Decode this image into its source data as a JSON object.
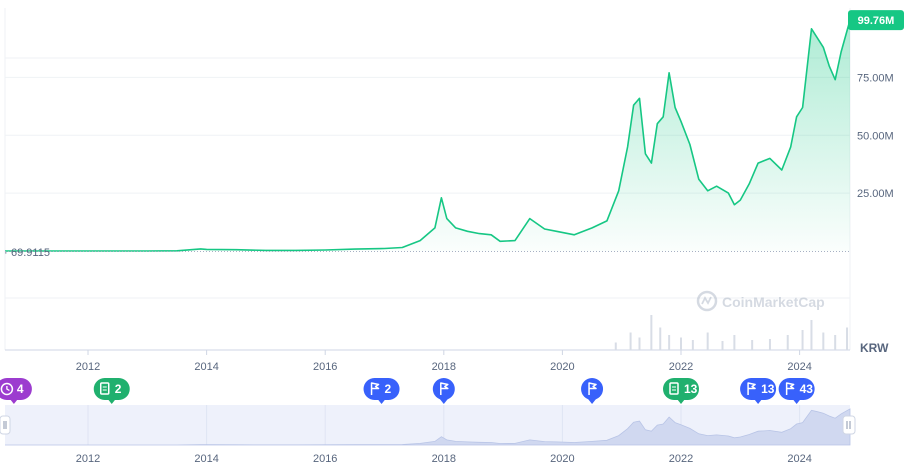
{
  "chart_data": {
    "type": "area",
    "currency": "KRW",
    "start_value_label": "69.9115",
    "current_value_label": "99.76M",
    "watermark": "CoinMarketCap",
    "y_ticks": [
      {
        "value": 25000000,
        "label": "25.00M"
      },
      {
        "value": 50000000,
        "label": "50.00M"
      },
      {
        "value": 75000000,
        "label": "75.00M"
      }
    ],
    "x_ticks": [
      {
        "year": 2012,
        "label": "2012"
      },
      {
        "year": 2014,
        "label": "2014"
      },
      {
        "year": 2016,
        "label": "2016"
      },
      {
        "year": 2018,
        "label": "2018"
      },
      {
        "year": 2020,
        "label": "2020"
      },
      {
        "year": 2022,
        "label": "2022"
      },
      {
        "year": 2024,
        "label": "2024"
      }
    ],
    "x_range": [
      2010.6,
      2024.85
    ],
    "y_range": [
      0,
      105000000
    ],
    "grid": true,
    "series": [
      {
        "color": "#16c784",
        "points": [
          [
            2010.6,
            70
          ],
          [
            2011.0,
            5000
          ],
          [
            2011.5,
            15000
          ],
          [
            2012.0,
            6000
          ],
          [
            2012.5,
            8000
          ],
          [
            2013.0,
            15000
          ],
          [
            2013.5,
            90000
          ],
          [
            2013.9,
            900000
          ],
          [
            2014.0,
            700000
          ],
          [
            2014.5,
            550000
          ],
          [
            2015.0,
            250000
          ],
          [
            2015.5,
            280000
          ],
          [
            2016.0,
            450000
          ],
          [
            2016.5,
            800000
          ],
          [
            2017.0,
            1100000
          ],
          [
            2017.3,
            1500000
          ],
          [
            2017.6,
            4500000
          ],
          [
            2017.85,
            10000000
          ],
          [
            2017.96,
            23000000
          ],
          [
            2018.05,
            14000000
          ],
          [
            2018.2,
            10000000
          ],
          [
            2018.4,
            8500000
          ],
          [
            2018.6,
            7500000
          ],
          [
            2018.8,
            7000000
          ],
          [
            2018.95,
            4200000
          ],
          [
            2019.2,
            4500000
          ],
          [
            2019.45,
            14000000
          ],
          [
            2019.7,
            9500000
          ],
          [
            2019.9,
            8500000
          ],
          [
            2020.2,
            7000000
          ],
          [
            2020.5,
            10000000
          ],
          [
            2020.75,
            13000000
          ],
          [
            2020.95,
            26000000
          ],
          [
            2021.1,
            45000000
          ],
          [
            2021.2,
            63000000
          ],
          [
            2021.3,
            66000000
          ],
          [
            2021.4,
            42000000
          ],
          [
            2021.5,
            38000000
          ],
          [
            2021.6,
            55000000
          ],
          [
            2021.7,
            58000000
          ],
          [
            2021.8,
            77000000
          ],
          [
            2021.9,
            62000000
          ],
          [
            2022.0,
            56000000
          ],
          [
            2022.15,
            46000000
          ],
          [
            2022.3,
            31000000
          ],
          [
            2022.45,
            26000000
          ],
          [
            2022.6,
            28000000
          ],
          [
            2022.8,
            25000000
          ],
          [
            2022.9,
            20000000
          ],
          [
            2023.0,
            22000000
          ],
          [
            2023.15,
            29000000
          ],
          [
            2023.3,
            38000000
          ],
          [
            2023.5,
            40000000
          ],
          [
            2023.7,
            35000000
          ],
          [
            2023.85,
            45000000
          ],
          [
            2023.95,
            58000000
          ],
          [
            2024.05,
            62000000
          ],
          [
            2024.2,
            96000000
          ],
          [
            2024.3,
            92000000
          ],
          [
            2024.4,
            88000000
          ],
          [
            2024.5,
            80000000
          ],
          [
            2024.6,
            74000000
          ],
          [
            2024.7,
            86000000
          ],
          [
            2024.85,
            99760000
          ]
        ]
      }
    ],
    "volume": [
      {
        "x": 2020.9,
        "v": 0.15
      },
      {
        "x": 2021.15,
        "v": 0.35
      },
      {
        "x": 2021.3,
        "v": 0.25
      },
      {
        "x": 2021.5,
        "v": 0.7
      },
      {
        "x": 2021.65,
        "v": 0.45
      },
      {
        "x": 2021.8,
        "v": 0.3
      },
      {
        "x": 2022.0,
        "v": 0.25
      },
      {
        "x": 2022.2,
        "v": 0.2
      },
      {
        "x": 2022.45,
        "v": 0.35
      },
      {
        "x": 2022.7,
        "v": 0.18
      },
      {
        "x": 2022.9,
        "v": 0.3
      },
      {
        "x": 2023.2,
        "v": 0.2
      },
      {
        "x": 2023.5,
        "v": 0.22
      },
      {
        "x": 2023.8,
        "v": 0.3
      },
      {
        "x": 2024.05,
        "v": 0.4
      },
      {
        "x": 2024.2,
        "v": 0.6
      },
      {
        "x": 2024.4,
        "v": 0.35
      },
      {
        "x": 2024.6,
        "v": 0.3
      },
      {
        "x": 2024.8,
        "v": 0.45
      }
    ],
    "events": [
      {
        "x": 2010.75,
        "icon": "clock-icon",
        "count": "4",
        "color": "#9c3ccf"
      },
      {
        "x": 2012.4,
        "icon": "document-icon",
        "count": "2",
        "color": "#20b06e"
      },
      {
        "x": 2016.95,
        "icon": "flag-icon",
        "count": "2",
        "color": "#3861fb"
      },
      {
        "x": 2018.0,
        "icon": "flag-icon",
        "count": "",
        "color": "#3861fb"
      },
      {
        "x": 2020.5,
        "icon": "flag-icon",
        "count": "",
        "color": "#3861fb"
      },
      {
        "x": 2022.0,
        "icon": "document-icon",
        "count": "13",
        "color": "#20b06e"
      },
      {
        "x": 2023.3,
        "icon": "flag-icon",
        "count": "13",
        "color": "#3861fb"
      },
      {
        "x": 2023.95,
        "icon": "flag-icon",
        "count": "43",
        "color": "#3861fb"
      }
    ],
    "navigator_ticks": [
      {
        "year": 2012,
        "label": "2012"
      },
      {
        "year": 2014,
        "label": "2014"
      },
      {
        "year": 2016,
        "label": "2016"
      },
      {
        "year": 2018,
        "label": "2018"
      },
      {
        "year": 2020,
        "label": "2020"
      },
      {
        "year": 2022,
        "label": "2022"
      },
      {
        "year": 2024,
        "label": "2024"
      }
    ],
    "colors": {
      "line": "#16c784",
      "grid": "#eff2f5",
      "axis_text": "#58667e",
      "navigator_bg": "#eef1fb",
      "navigator_fill": "#d0d8f0"
    }
  }
}
